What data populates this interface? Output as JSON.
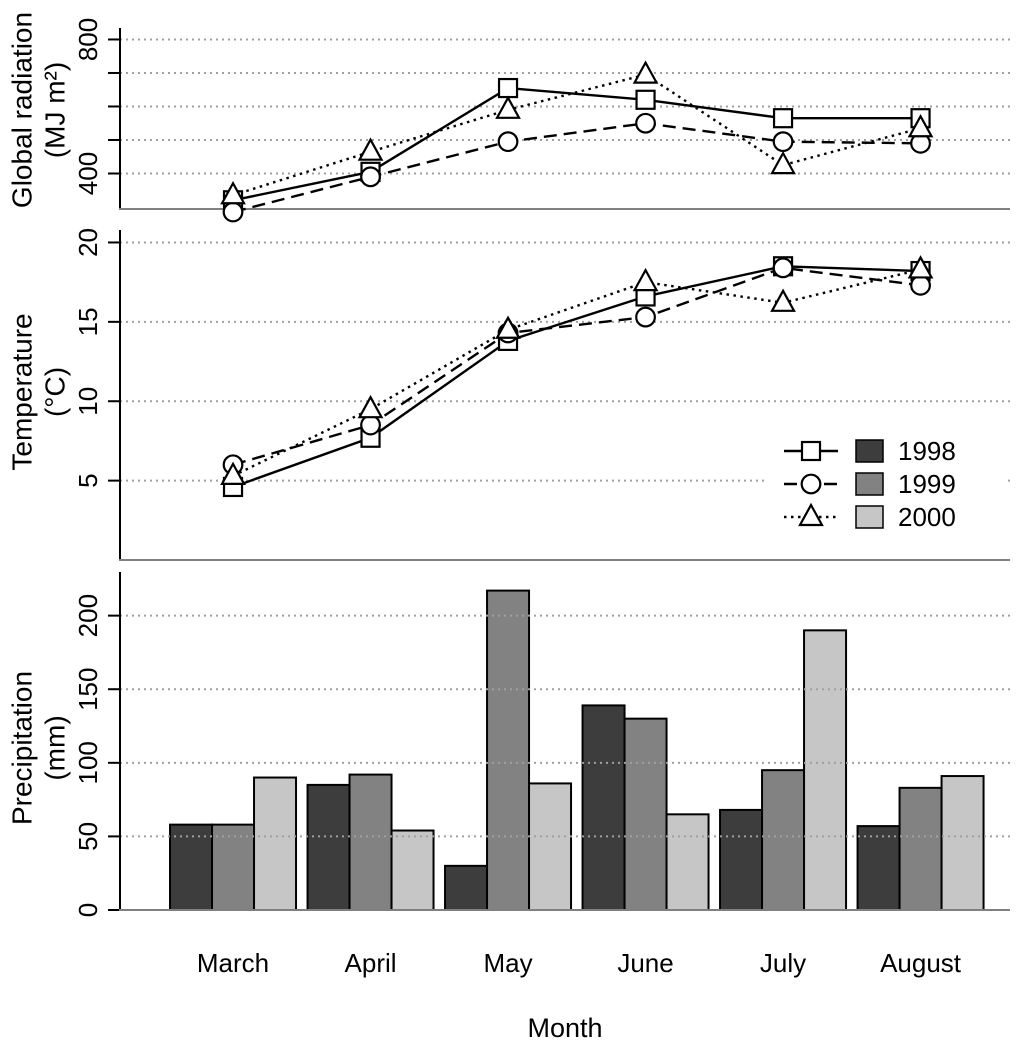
{
  "figure": {
    "xlabel": "Month",
    "months": [
      "March",
      "April",
      "May",
      "June",
      "July",
      "August"
    ],
    "colors": {
      "1998": "#3d3d3d",
      "1999": "#828282",
      "2000": "#c6c6c6"
    },
    "legend": {
      "position": "temperature-panel-right",
      "entries": [
        {
          "label": "1998",
          "marker": "square",
          "line": "solid",
          "swatch": "#3d3d3d"
        },
        {
          "label": "1999",
          "marker": "circle",
          "line": "dashed",
          "swatch": "#828282"
        },
        {
          "label": "2000",
          "marker": "triangle",
          "line": "dotted",
          "swatch": "#c6c6c6"
        }
      ]
    }
  },
  "chart_data": [
    {
      "type": "line",
      "title": "",
      "ylabel": "Global radiation",
      "ylabel_units": "(MJ m²)",
      "xlabel": "Month",
      "categories": [
        "March",
        "April",
        "May",
        "June",
        "July",
        "August"
      ],
      "yticks": [
        400,
        500,
        600,
        700,
        800
      ],
      "ytick_labels": [
        400,
        800
      ],
      "ylim": [
        294,
        882
      ],
      "grid": true,
      "series": [
        {
          "name": "1998",
          "marker": "square",
          "line": "solid",
          "values": [
            320,
            405,
            655,
            620,
            565,
            565
          ]
        },
        {
          "name": "1999",
          "marker": "circle",
          "line": "dashed",
          "values": [
            285,
            390,
            495,
            550,
            495,
            490
          ]
        },
        {
          "name": "2000",
          "marker": "triangle",
          "line": "dotted",
          "values": [
            335,
            465,
            590,
            695,
            425,
            535
          ]
        }
      ]
    },
    {
      "type": "line",
      "title": "",
      "ylabel": "Temperature",
      "ylabel_units": "(°C)",
      "xlabel": "Month",
      "categories": [
        "March",
        "April",
        "May",
        "June",
        "July",
        "August"
      ],
      "yticks": [
        5,
        10,
        15,
        20
      ],
      "ytick_labels": [
        5,
        10,
        15,
        20
      ],
      "ylim": [
        0,
        21.1
      ],
      "grid": true,
      "series": [
        {
          "name": "1998",
          "marker": "square",
          "line": "solid",
          "values": [
            4.6,
            7.7,
            13.8,
            16.6,
            18.5,
            18.2
          ]
        },
        {
          "name": "1999",
          "marker": "circle",
          "line": "dashed",
          "values": [
            6.0,
            8.5,
            14.3,
            15.3,
            18.4,
            17.3
          ]
        },
        {
          "name": "2000",
          "marker": "triangle",
          "line": "dotted",
          "values": [
            5.3,
            9.5,
            14.5,
            17.5,
            16.2,
            18.3
          ]
        }
      ]
    },
    {
      "type": "bar",
      "title": "",
      "ylabel": "Precipitation",
      "ylabel_units": "(mm)",
      "xlabel": "Month",
      "categories": [
        "March",
        "April",
        "May",
        "June",
        "July",
        "August"
      ],
      "yticks": [
        0,
        50,
        100,
        150,
        200
      ],
      "ytick_labels": [
        0,
        50,
        100,
        150,
        200
      ],
      "ylim": [
        0,
        231
      ],
      "grid": true,
      "series": [
        {
          "name": "1998",
          "color": "#3d3d3d",
          "values": [
            58,
            85,
            30,
            139,
            68,
            57
          ]
        },
        {
          "name": "1999",
          "color": "#828282",
          "values": [
            58,
            92,
            217,
            130,
            95,
            83
          ]
        },
        {
          "name": "2000",
          "color": "#c6c6c6",
          "values": [
            90,
            54,
            86,
            65,
            190,
            91
          ]
        }
      ]
    }
  ]
}
